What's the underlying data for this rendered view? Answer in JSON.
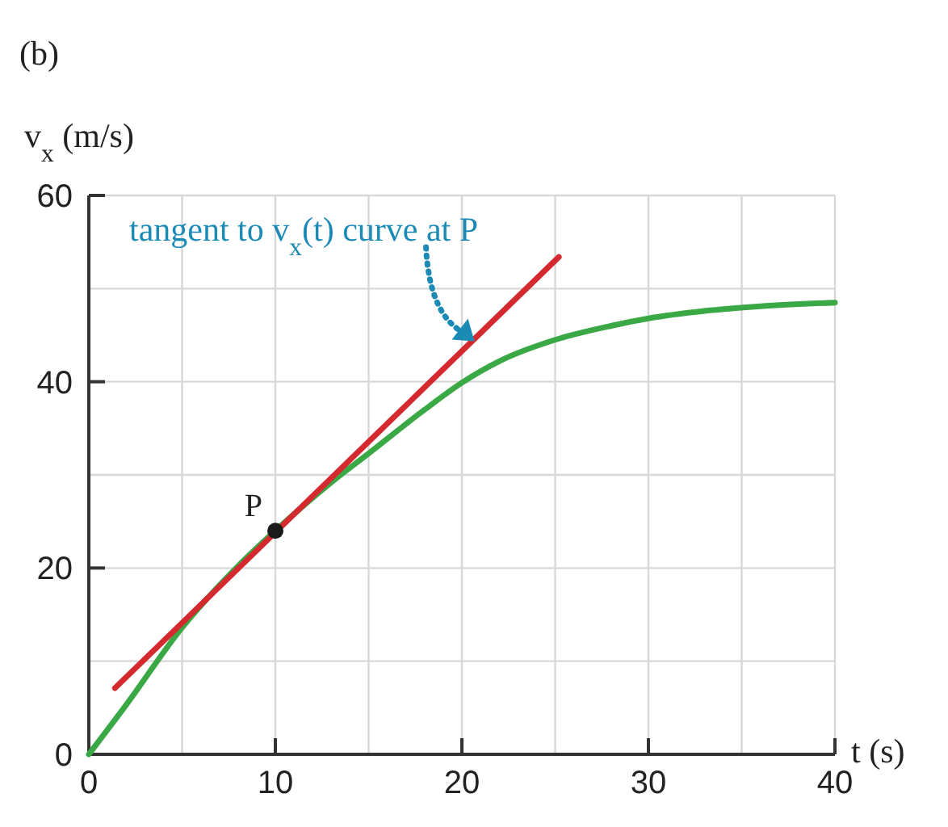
{
  "chart_data": {
    "type": "line",
    "xlabel": "t (s)",
    "ylabel": "v$_{x}$ (m/s)",
    "annotations": [
      "(b)",
      {
        "text": "tangent to v$_{x}$(t) curve at P",
        "x": 20.5,
        "y": 44
      }
    ],
    "xlim": [
      0,
      40
    ],
    "ylim": [
      0,
      60
    ],
    "xticks": [
      0,
      {
        "value": 5,
        "label": null
      },
      10,
      {
        "value": 15,
        "label": null
      },
      20,
      {
        "value": 25,
        "label": null
      },
      30,
      {
        "value": 35,
        "label": null
      },
      40
    ],
    "yticks": [
      0,
      {
        "value": 10,
        "label": null
      },
      20,
      {
        "value": 30,
        "label": null
      },
      40,
      {
        "value": 50,
        "label": null
      },
      60
    ],
    "grid": true,
    "series": [
      {
        "color": "#3aa845",
        "x": [
          0,
          2,
          5,
          8,
          10,
          13,
          15,
          18,
          20,
          22,
          25,
          28,
          30,
          33,
          36,
          40
        ],
        "values": [
          0,
          5.3,
          13.6,
          20.2,
          24,
          29.2,
          32.3,
          37,
          39.9,
          42.2,
          44.5,
          46,
          46.8,
          47.6,
          48.1,
          48.5
        ]
      },
      {
        "type": "line",
        "color": "#d42a2f",
        "x": [
          1.4,
          25.2
        ],
        "values": [
          7.1,
          53.4
        ]
      },
      {
        "type": "scatter",
        "name": "P",
        "color": "#1a1a1a",
        "marker": "circle",
        "x": [
          10
        ],
        "values": [
          24
        ]
      }
    ]
  }
}
